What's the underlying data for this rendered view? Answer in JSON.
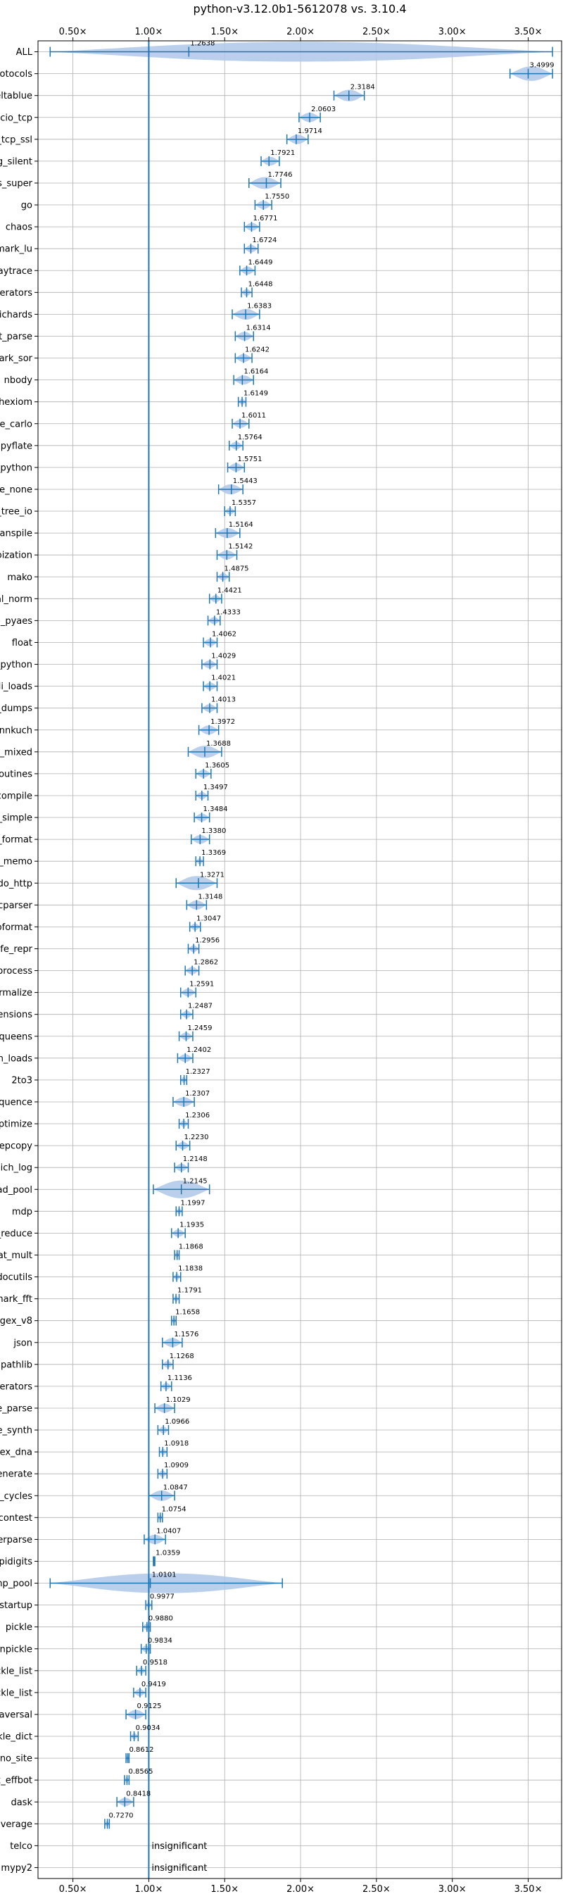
{
  "chart_data": {
    "type": "violin",
    "title": "python-v3.12.0b1-5612078 vs. 3.10.4",
    "xlim": [
      0.27,
      3.72
    ],
    "x_ticks": [
      0.5,
      1.0,
      1.5,
      2.0,
      2.5,
      3.0,
      3.5
    ],
    "x_tick_labels": [
      "0.50×",
      "1.00×",
      "1.50×",
      "2.00×",
      "2.50×",
      "3.00×",
      "3.50×"
    ],
    "reference_line": 1.0,
    "grid": true,
    "colors": {
      "violin": "#aec7e8",
      "marker": "#1f77b4",
      "axis": "#000000",
      "grid": "#b0b0b0"
    },
    "benchmarks": [
      {
        "name": "ALL",
        "value": 1.2638,
        "label": "1.2638",
        "min": 0.35,
        "max": 3.66
      },
      {
        "name": "typing_runtime_protocols",
        "value": 3.4999,
        "label": "3.4999",
        "min": 3.38,
        "max": 3.66
      },
      {
        "name": "deltablue",
        "value": 2.3184,
        "label": "2.3184",
        "min": 2.22,
        "max": 2.42
      },
      {
        "name": "asyncio_tcp",
        "value": 2.0603,
        "label": "2.0603",
        "min": 1.99,
        "max": 2.13
      },
      {
        "name": "asyncio_tcp_ssl",
        "value": 1.9714,
        "label": "1.9714",
        "min": 1.91,
        "max": 2.05
      },
      {
        "name": "logging_silent",
        "value": 1.7921,
        "label": "1.7921",
        "min": 1.74,
        "max": 1.86
      },
      {
        "name": "richards_super",
        "value": 1.7746,
        "label": "1.7746",
        "min": 1.66,
        "max": 1.87
      },
      {
        "name": "go",
        "value": 1.755,
        "label": "1.7550",
        "min": 1.7,
        "max": 1.81
      },
      {
        "name": "chaos",
        "value": 1.6771,
        "label": "1.6771",
        "min": 1.63,
        "max": 1.73
      },
      {
        "name": "scimark_lu",
        "value": 1.6724,
        "label": "1.6724",
        "min": 1.63,
        "max": 1.72
      },
      {
        "name": "raytrace",
        "value": 1.6449,
        "label": "1.6449",
        "min": 1.6,
        "max": 1.7
      },
      {
        "name": "generators",
        "value": 1.6448,
        "label": "1.6448",
        "min": 1.61,
        "max": 1.68
      },
      {
        "name": "richards",
        "value": 1.6383,
        "label": "1.6383",
        "min": 1.55,
        "max": 1.73
      },
      {
        "name": "sqlglot_parse",
        "value": 1.6314,
        "label": "1.6314",
        "min": 1.57,
        "max": 1.69
      },
      {
        "name": "scimark_sor",
        "value": 1.6242,
        "label": "1.6242",
        "min": 1.57,
        "max": 1.68
      },
      {
        "name": "nbody",
        "value": 1.6164,
        "label": "1.6164",
        "min": 1.56,
        "max": 1.69
      },
      {
        "name": "hexiom",
        "value": 1.6149,
        "label": "1.6149",
        "min": 1.59,
        "max": 1.64
      },
      {
        "name": "scimark_monte_carlo",
        "value": 1.6011,
        "label": "1.6011",
        "min": 1.55,
        "max": 1.66
      },
      {
        "name": "pyflate",
        "value": 1.5764,
        "label": "1.5764",
        "min": 1.53,
        "max": 1.62
      },
      {
        "name": "unpickle_pure_python",
        "value": 1.5751,
        "label": "1.5751",
        "min": 1.52,
        "max": 1.63
      },
      {
        "name": "async_tree_none",
        "value": 1.5443,
        "label": "1.5443",
        "min": 1.46,
        "max": 1.62
      },
      {
        "name": "async_tree_io",
        "value": 1.5357,
        "label": "1.5357",
        "min": 1.5,
        "max": 1.57
      },
      {
        "name": "sqlglot_transpile",
        "value": 1.5164,
        "label": "1.5164",
        "min": 1.44,
        "max": 1.6
      },
      {
        "name": "async_tree_memoization",
        "value": 1.5142,
        "label": "1.5142",
        "min": 1.45,
        "max": 1.58
      },
      {
        "name": "mako",
        "value": 1.4875,
        "label": "1.4875",
        "min": 1.45,
        "max": 1.53
      },
      {
        "name": "spectral_norm",
        "value": 1.4421,
        "label": "1.4421",
        "min": 1.4,
        "max": 1.48
      },
      {
        "name": "crypto_pyaes",
        "value": 1.4333,
        "label": "1.4333",
        "min": 1.39,
        "max": 1.47
      },
      {
        "name": "float",
        "value": 1.4062,
        "label": "1.4062",
        "min": 1.36,
        "max": 1.45
      },
      {
        "name": "pickle_pure_python",
        "value": 1.4029,
        "label": "1.4029",
        "min": 1.35,
        "max": 1.45
      },
      {
        "name": "tomli_loads",
        "value": 1.4021,
        "label": "1.4021",
        "min": 1.36,
        "max": 1.45
      },
      {
        "name": "json_dumps",
        "value": 1.4013,
        "label": "1.4013",
        "min": 1.35,
        "max": 1.45
      },
      {
        "name": "fannkuch",
        "value": 1.3972,
        "label": "1.3972",
        "min": 1.33,
        "max": 1.46
      },
      {
        "name": "async_tree_cpu_io_mixed",
        "value": 1.3688,
        "label": "1.3688",
        "min": 1.26,
        "max": 1.48
      },
      {
        "name": "coroutines",
        "value": 1.3605,
        "label": "1.3605",
        "min": 1.31,
        "max": 1.41
      },
      {
        "name": "regex_compile",
        "value": 1.3497,
        "label": "1.3497",
        "min": 1.31,
        "max": 1.39
      },
      {
        "name": "logging_simple",
        "value": 1.3484,
        "label": "1.3484",
        "min": 1.3,
        "max": 1.4
      },
      {
        "name": "logging_format",
        "value": 1.338,
        "label": "1.3380",
        "min": 1.28,
        "max": 1.4
      },
      {
        "name": "deepcopy_memo",
        "value": 1.3369,
        "label": "1.3369",
        "min": 1.31,
        "max": 1.36
      },
      {
        "name": "tornado_http",
        "value": 1.3271,
        "label": "1.3271",
        "min": 1.18,
        "max": 1.45
      },
      {
        "name": "pycparser",
        "value": 1.3148,
        "label": "1.3148",
        "min": 1.25,
        "max": 1.38
      },
      {
        "name": "pprint_pformat",
        "value": 1.3047,
        "label": "1.3047",
        "min": 1.27,
        "max": 1.34
      },
      {
        "name": "pprint_safe_repr",
        "value": 1.2956,
        "label": "1.2956",
        "min": 1.26,
        "max": 1.33
      },
      {
        "name": "xml_etree_process",
        "value": 1.2862,
        "label": "1.2862",
        "min": 1.24,
        "max": 1.33
      },
      {
        "name": "sqlglot_normalize",
        "value": 1.2591,
        "label": "1.2591",
        "min": 1.21,
        "max": 1.31
      },
      {
        "name": "comprehensions",
        "value": 1.2487,
        "label": "1.2487",
        "min": 1.21,
        "max": 1.29
      },
      {
        "name": "nqueens",
        "value": 1.2459,
        "label": "1.2459",
        "min": 1.2,
        "max": 1.29
      },
      {
        "name": "json_loads",
        "value": 1.2402,
        "label": "1.2402",
        "min": 1.19,
        "max": 1.29
      },
      {
        "name": "2to3",
        "value": 1.2327,
        "label": "1.2327",
        "min": 1.21,
        "max": 1.25
      },
      {
        "name": "unpack_sequence",
        "value": 1.2307,
        "label": "1.2307",
        "min": 1.16,
        "max": 1.3
      },
      {
        "name": "sqlglot_optimize",
        "value": 1.2306,
        "label": "1.2306",
        "min": 1.2,
        "max": 1.26
      },
      {
        "name": "deepcopy",
        "value": 1.223,
        "label": "1.2230",
        "min": 1.18,
        "max": 1.27
      },
      {
        "name": "dulwich_log",
        "value": 1.2148,
        "label": "1.2148",
        "min": 1.17,
        "max": 1.26
      },
      {
        "name": "bench_thread_pool",
        "value": 1.2145,
        "label": "1.2145",
        "min": 1.03,
        "max": 1.4
      },
      {
        "name": "mdp",
        "value": 1.1997,
        "label": "1.1997",
        "min": 1.18,
        "max": 1.22
      },
      {
        "name": "deepcopy_reduce",
        "value": 1.1935,
        "label": "1.1935",
        "min": 1.15,
        "max": 1.24
      },
      {
        "name": "scimark_sparse_mat_mult",
        "value": 1.1868,
        "label": "1.1868",
        "min": 1.17,
        "max": 1.2
      },
      {
        "name": "docutils",
        "value": 1.1838,
        "label": "1.1838",
        "min": 1.16,
        "max": 1.21
      },
      {
        "name": "scimark_fft",
        "value": 1.1791,
        "label": "1.1791",
        "min": 1.16,
        "max": 1.2
      },
      {
        "name": "regex_v8",
        "value": 1.1658,
        "label": "1.1658",
        "min": 1.15,
        "max": 1.18
      },
      {
        "name": "json",
        "value": 1.1576,
        "label": "1.1576",
        "min": 1.09,
        "max": 1.22
      },
      {
        "name": "pathlib",
        "value": 1.1268,
        "label": "1.1268",
        "min": 1.09,
        "max": 1.16
      },
      {
        "name": "async_generators",
        "value": 1.1136,
        "label": "1.1136",
        "min": 1.08,
        "max": 1.15
      },
      {
        "name": "xml_etree_parse",
        "value": 1.1029,
        "label": "1.1029",
        "min": 1.04,
        "max": 1.17
      },
      {
        "name": "sqlite_synth",
        "value": 1.0966,
        "label": "1.0966",
        "min": 1.06,
        "max": 1.13
      },
      {
        "name": "regex_dna",
        "value": 1.0918,
        "label": "1.0918",
        "min": 1.07,
        "max": 1.12
      },
      {
        "name": "xml_etree_generate",
        "value": 1.0909,
        "label": "1.0909",
        "min": 1.06,
        "max": 1.12
      },
      {
        "name": "create_gc_cycles",
        "value": 1.0847,
        "label": "1.0847",
        "min": 1.0,
        "max": 1.17
      },
      {
        "name": "meteor_contest",
        "value": 1.0754,
        "label": "1.0754",
        "min": 1.06,
        "max": 1.09
      },
      {
        "name": "xml_etree_iterparse",
        "value": 1.0407,
        "label": "1.0407",
        "min": 0.97,
        "max": 1.11
      },
      {
        "name": "pidigits",
        "value": 1.0359,
        "label": "1.0359",
        "min": 1.03,
        "max": 1.04
      },
      {
        "name": "bench_mp_pool",
        "value": 1.0101,
        "label": "1.0101",
        "min": 0.35,
        "max": 1.88
      },
      {
        "name": "python_startup",
        "value": 0.9977,
        "label": "0.9977",
        "min": 0.98,
        "max": 1.02
      },
      {
        "name": "pickle",
        "value": 0.988,
        "label": "0.9880",
        "min": 0.96,
        "max": 1.01
      },
      {
        "name": "unpickle",
        "value": 0.9834,
        "label": "0.9834",
        "min": 0.95,
        "max": 1.01
      },
      {
        "name": "unpickle_list",
        "value": 0.9518,
        "label": "0.9518",
        "min": 0.92,
        "max": 0.98
      },
      {
        "name": "pickle_list",
        "value": 0.9419,
        "label": "0.9419",
        "min": 0.9,
        "max": 0.98
      },
      {
        "name": "gc_traversal",
        "value": 0.9125,
        "label": "0.9125",
        "min": 0.85,
        "max": 0.98
      },
      {
        "name": "pickle_dict",
        "value": 0.9034,
        "label": "0.9034",
        "min": 0.88,
        "max": 0.93
      },
      {
        "name": "python_startup_no_site",
        "value": 0.8612,
        "label": "0.8612",
        "min": 0.85,
        "max": 0.87
      },
      {
        "name": "regex_effbot",
        "value": 0.8565,
        "label": "0.8565",
        "min": 0.84,
        "max": 0.87
      },
      {
        "name": "dask",
        "value": 0.8418,
        "label": "0.8418",
        "min": 0.79,
        "max": 0.9
      },
      {
        "name": "coverage",
        "value": 0.727,
        "label": "0.7270",
        "min": 0.71,
        "max": 0.74
      },
      {
        "name": "telco",
        "value": null,
        "label": "insignificant"
      },
      {
        "name": "mypy2",
        "value": null,
        "label": "insignificant"
      }
    ]
  }
}
